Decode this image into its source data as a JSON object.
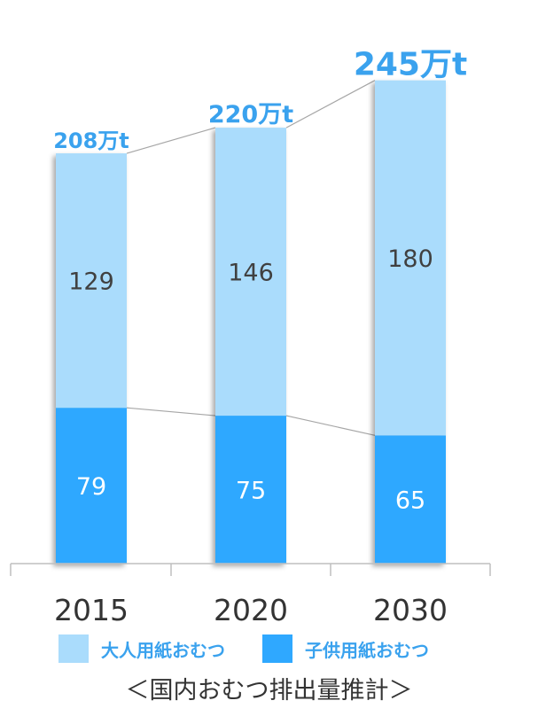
{
  "chart_data": {
    "type": "bar",
    "stacked": true,
    "categories": [
      "2015",
      "2020",
      "2030"
    ],
    "series": [
      {
        "name": "子供用紙おむつ",
        "values": [
          79,
          75,
          65
        ],
        "color": "#2fa8ff"
      },
      {
        "name": "大人用紙おむつ",
        "values": [
          129,
          146,
          180
        ],
        "color": "#aadcfc"
      }
    ],
    "totals": [
      "208万t",
      "220万t",
      "245万t"
    ],
    "title": "",
    "xlabel": "",
    "ylabel": "",
    "ylim": [
      0,
      248
    ],
    "grid": false,
    "legend_position": "bottom",
    "colors": {
      "total_label": "#3aa2ee",
      "segment_label": "#404040",
      "axis": "#bfbfbf",
      "connector": "#a6a6a6"
    }
  },
  "caption": "＜国内おむつ排出量推計＞"
}
